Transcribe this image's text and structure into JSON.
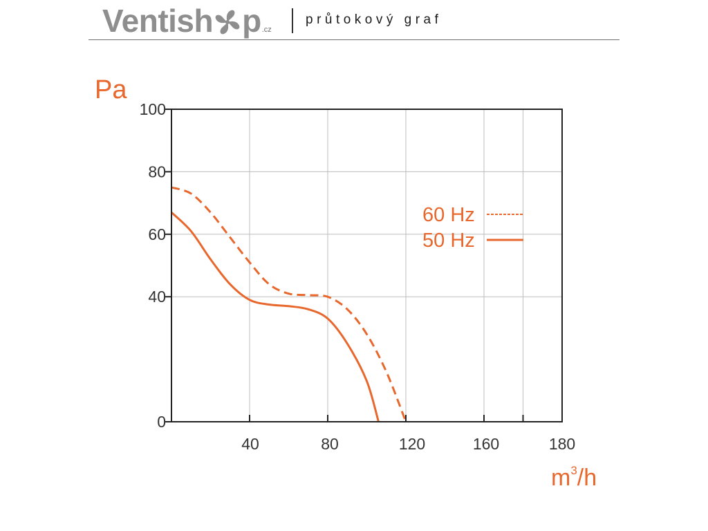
{
  "header": {
    "logo_before": "Ventish",
    "logo_after": "p",
    "logo_tld": ".cz",
    "logo_icon": "fan-icon",
    "subtitle": "průtokový graf"
  },
  "colors": {
    "accent": "#e8672c",
    "logo_gray": "#8e8e8e",
    "axis": "#222222",
    "grid": "#bdbdbd"
  },
  "chart_data": {
    "type": "line",
    "title": "",
    "ylabel": "Pa",
    "xlabel": "m",
    "xlabel_sup": "3",
    "xlabel_tail": "/h",
    "xlim": [
      0,
      200
    ],
    "ylim": [
      0,
      100
    ],
    "xticks": [
      40,
      80,
      120,
      160,
      180
    ],
    "xtick_labels": [
      "40",
      "80",
      "120",
      "160",
      "180"
    ],
    "yticks": [
      0,
      40,
      60,
      80,
      100
    ],
    "ytick_labels": [
      "0",
      "40",
      "60",
      "80",
      "100"
    ],
    "grid": true,
    "legend_position": "right",
    "series": [
      {
        "name": "60 Hz",
        "style": "dashed",
        "x": [
          0,
          10,
          20,
          30,
          40,
          50,
          60,
          70,
          80,
          90,
          100,
          110,
          120
        ],
        "y": [
          75,
          73,
          67,
          59,
          51,
          44,
          41,
          40.5,
          40,
          36,
          28,
          16,
          0
        ]
      },
      {
        "name": "50 Hz",
        "style": "solid",
        "x": [
          0,
          10,
          20,
          30,
          40,
          50,
          60,
          70,
          80,
          90,
          100,
          106
        ],
        "y": [
          67,
          61,
          52,
          44,
          39,
          37.5,
          37,
          36,
          33,
          25,
          13,
          0
        ]
      }
    ]
  }
}
